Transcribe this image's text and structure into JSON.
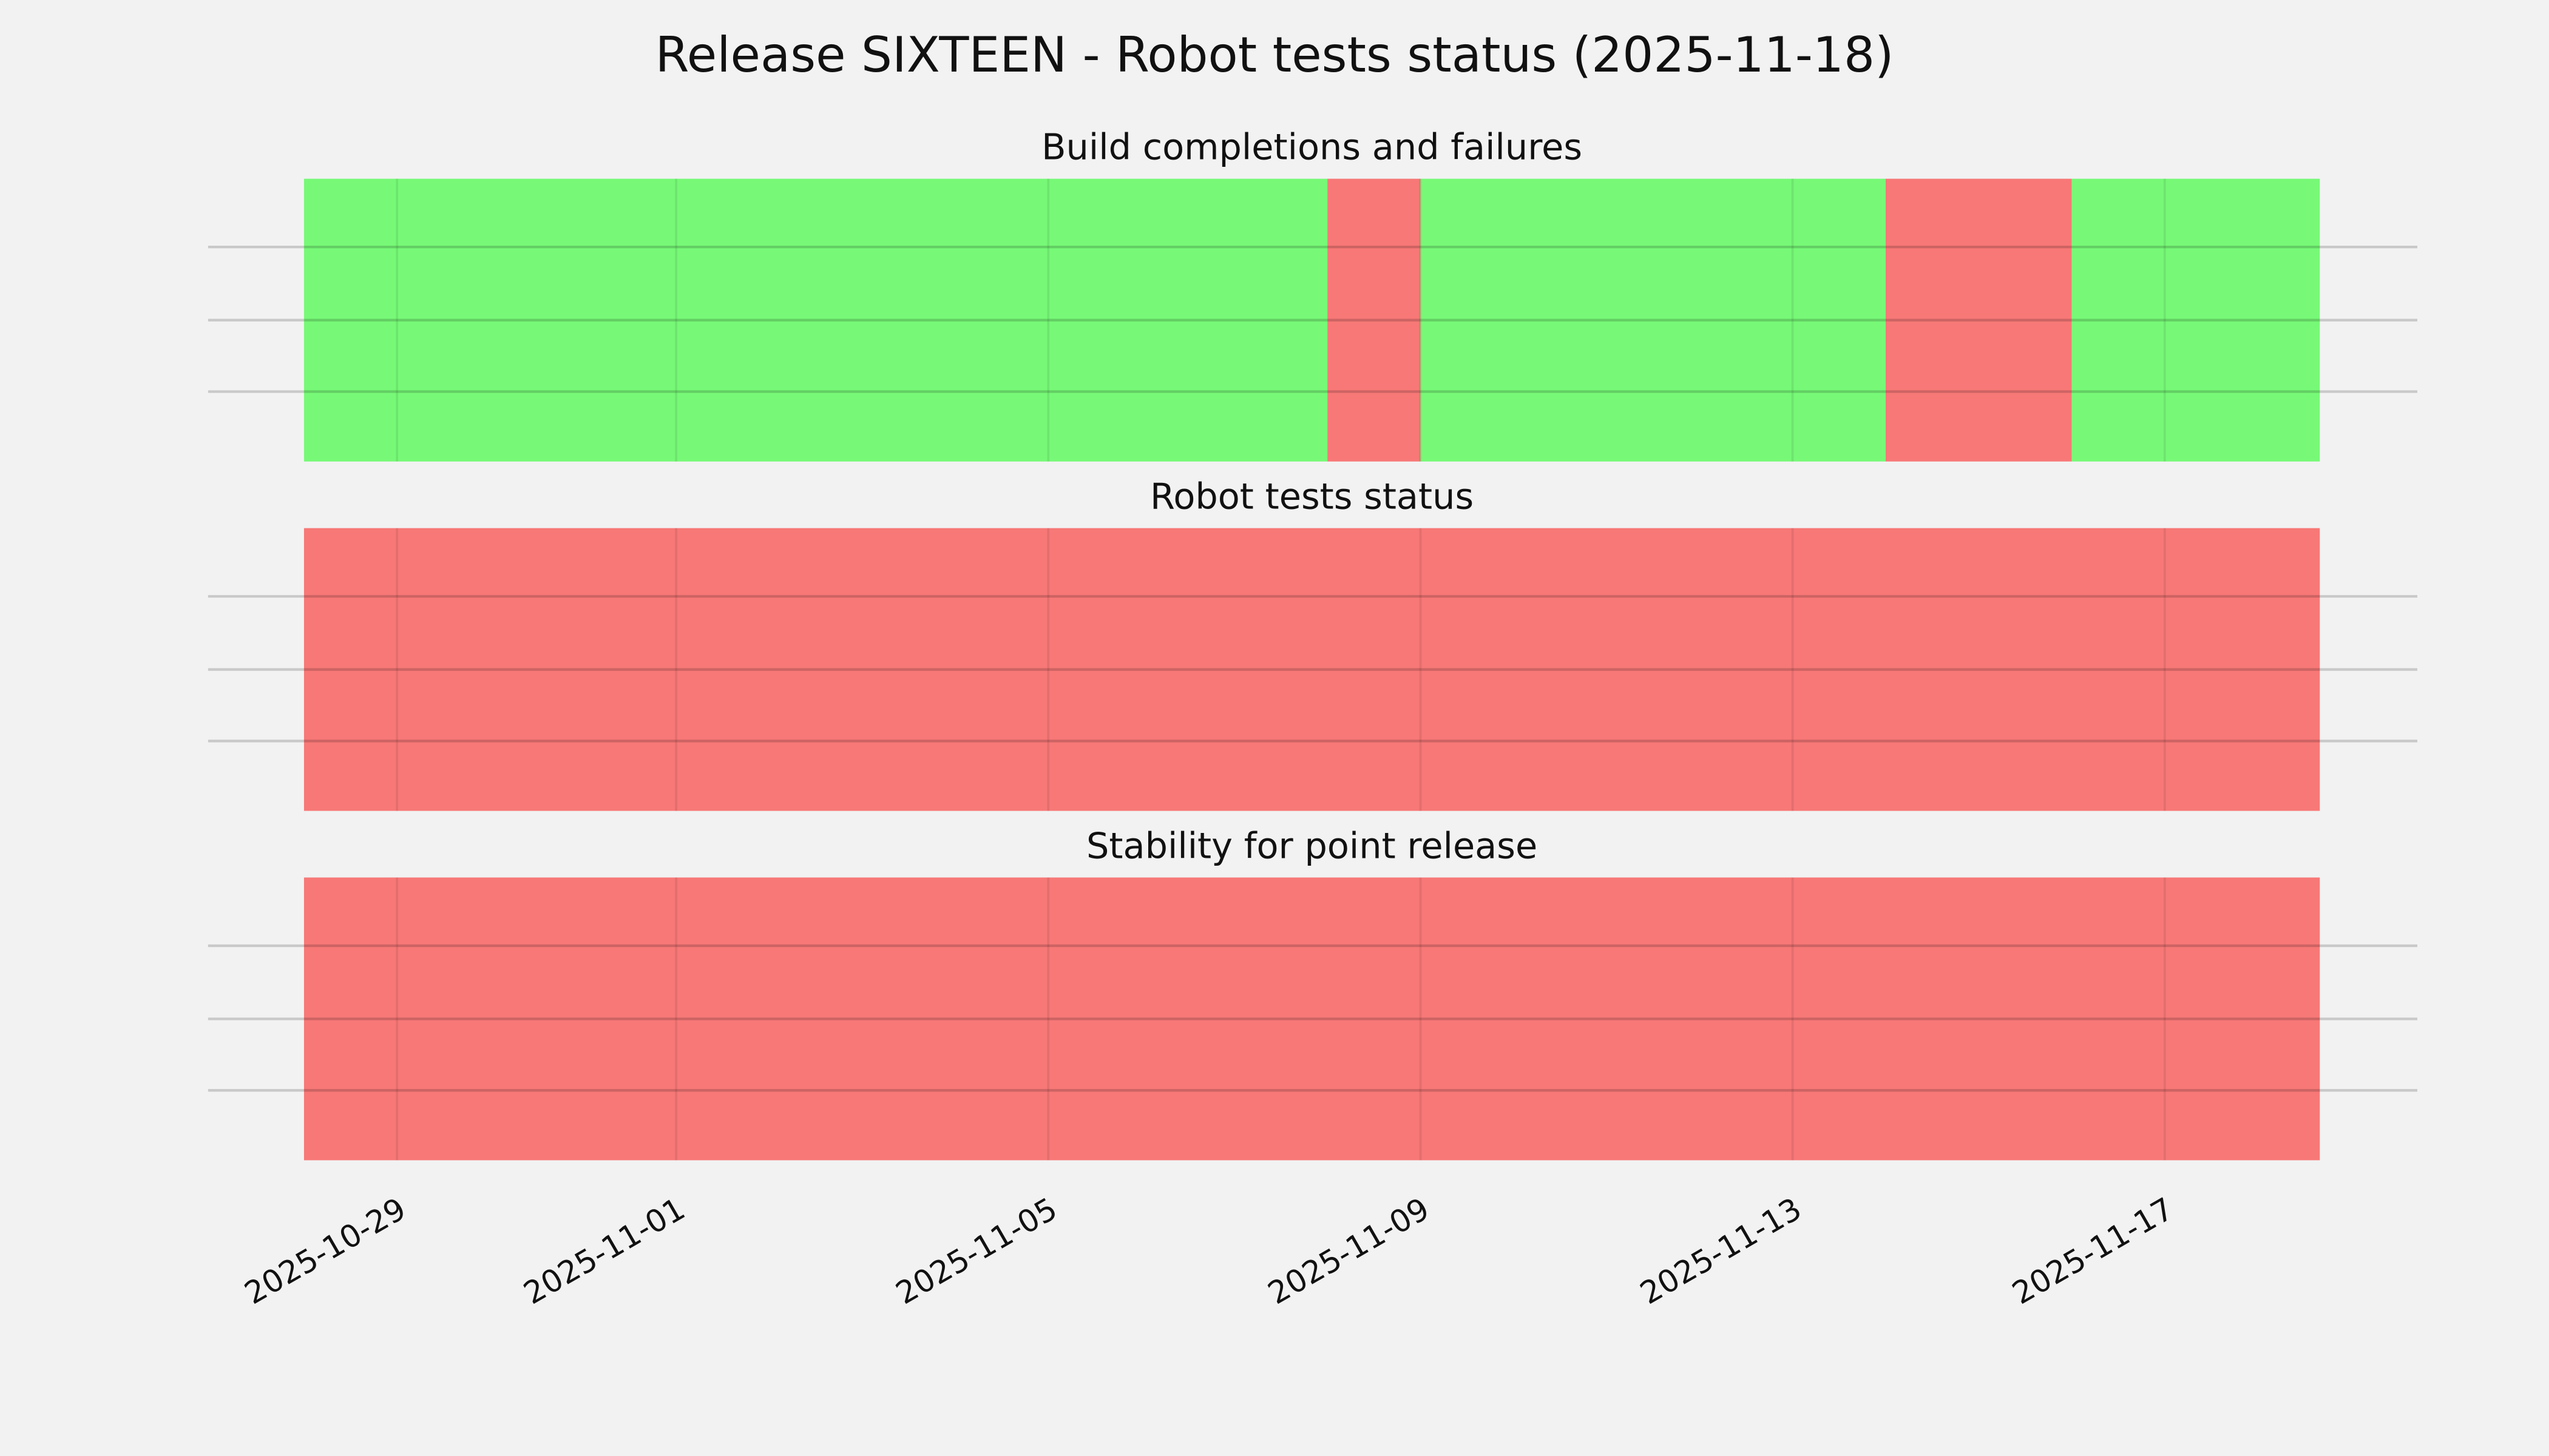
{
  "chart_data": {
    "type": "timeline",
    "title": "Release SIXTEEN - Robot tests status (2025-11-18)",
    "xlim": [
      "2025-10-28T00:00",
      "2025-11-18T16:00"
    ],
    "x_ticks": [
      "2025-10-29",
      "2025-11-01",
      "2025-11-05",
      "2025-11-09",
      "2025-11-13",
      "2025-11-17"
    ],
    "grid": true,
    "colors": {
      "success": "#77f977",
      "failure": "#f77877",
      "background": "#f2f2f2"
    },
    "panels": [
      {
        "title": "Build completions and failures",
        "segments": [
          {
            "start": "2025-10-28T00:00",
            "end": "2025-11-08T00:00",
            "status": "success"
          },
          {
            "start": "2025-11-08T00:00",
            "end": "2025-11-09T00:00",
            "status": "failure"
          },
          {
            "start": "2025-11-09T00:00",
            "end": "2025-11-14T00:00",
            "status": "success"
          },
          {
            "start": "2025-11-14T00:00",
            "end": "2025-11-16T00:00",
            "status": "failure"
          },
          {
            "start": "2025-11-16T00:00",
            "end": "2025-11-18T16:00",
            "status": "success"
          }
        ]
      },
      {
        "title": "Robot tests status",
        "segments": [
          {
            "start": "2025-10-28T00:00",
            "end": "2025-11-18T16:00",
            "status": "failure"
          }
        ]
      },
      {
        "title": "Stability for point release",
        "segments": [
          {
            "start": "2025-10-28T00:00",
            "end": "2025-11-18T16:00",
            "status": "failure"
          }
        ]
      }
    ]
  }
}
